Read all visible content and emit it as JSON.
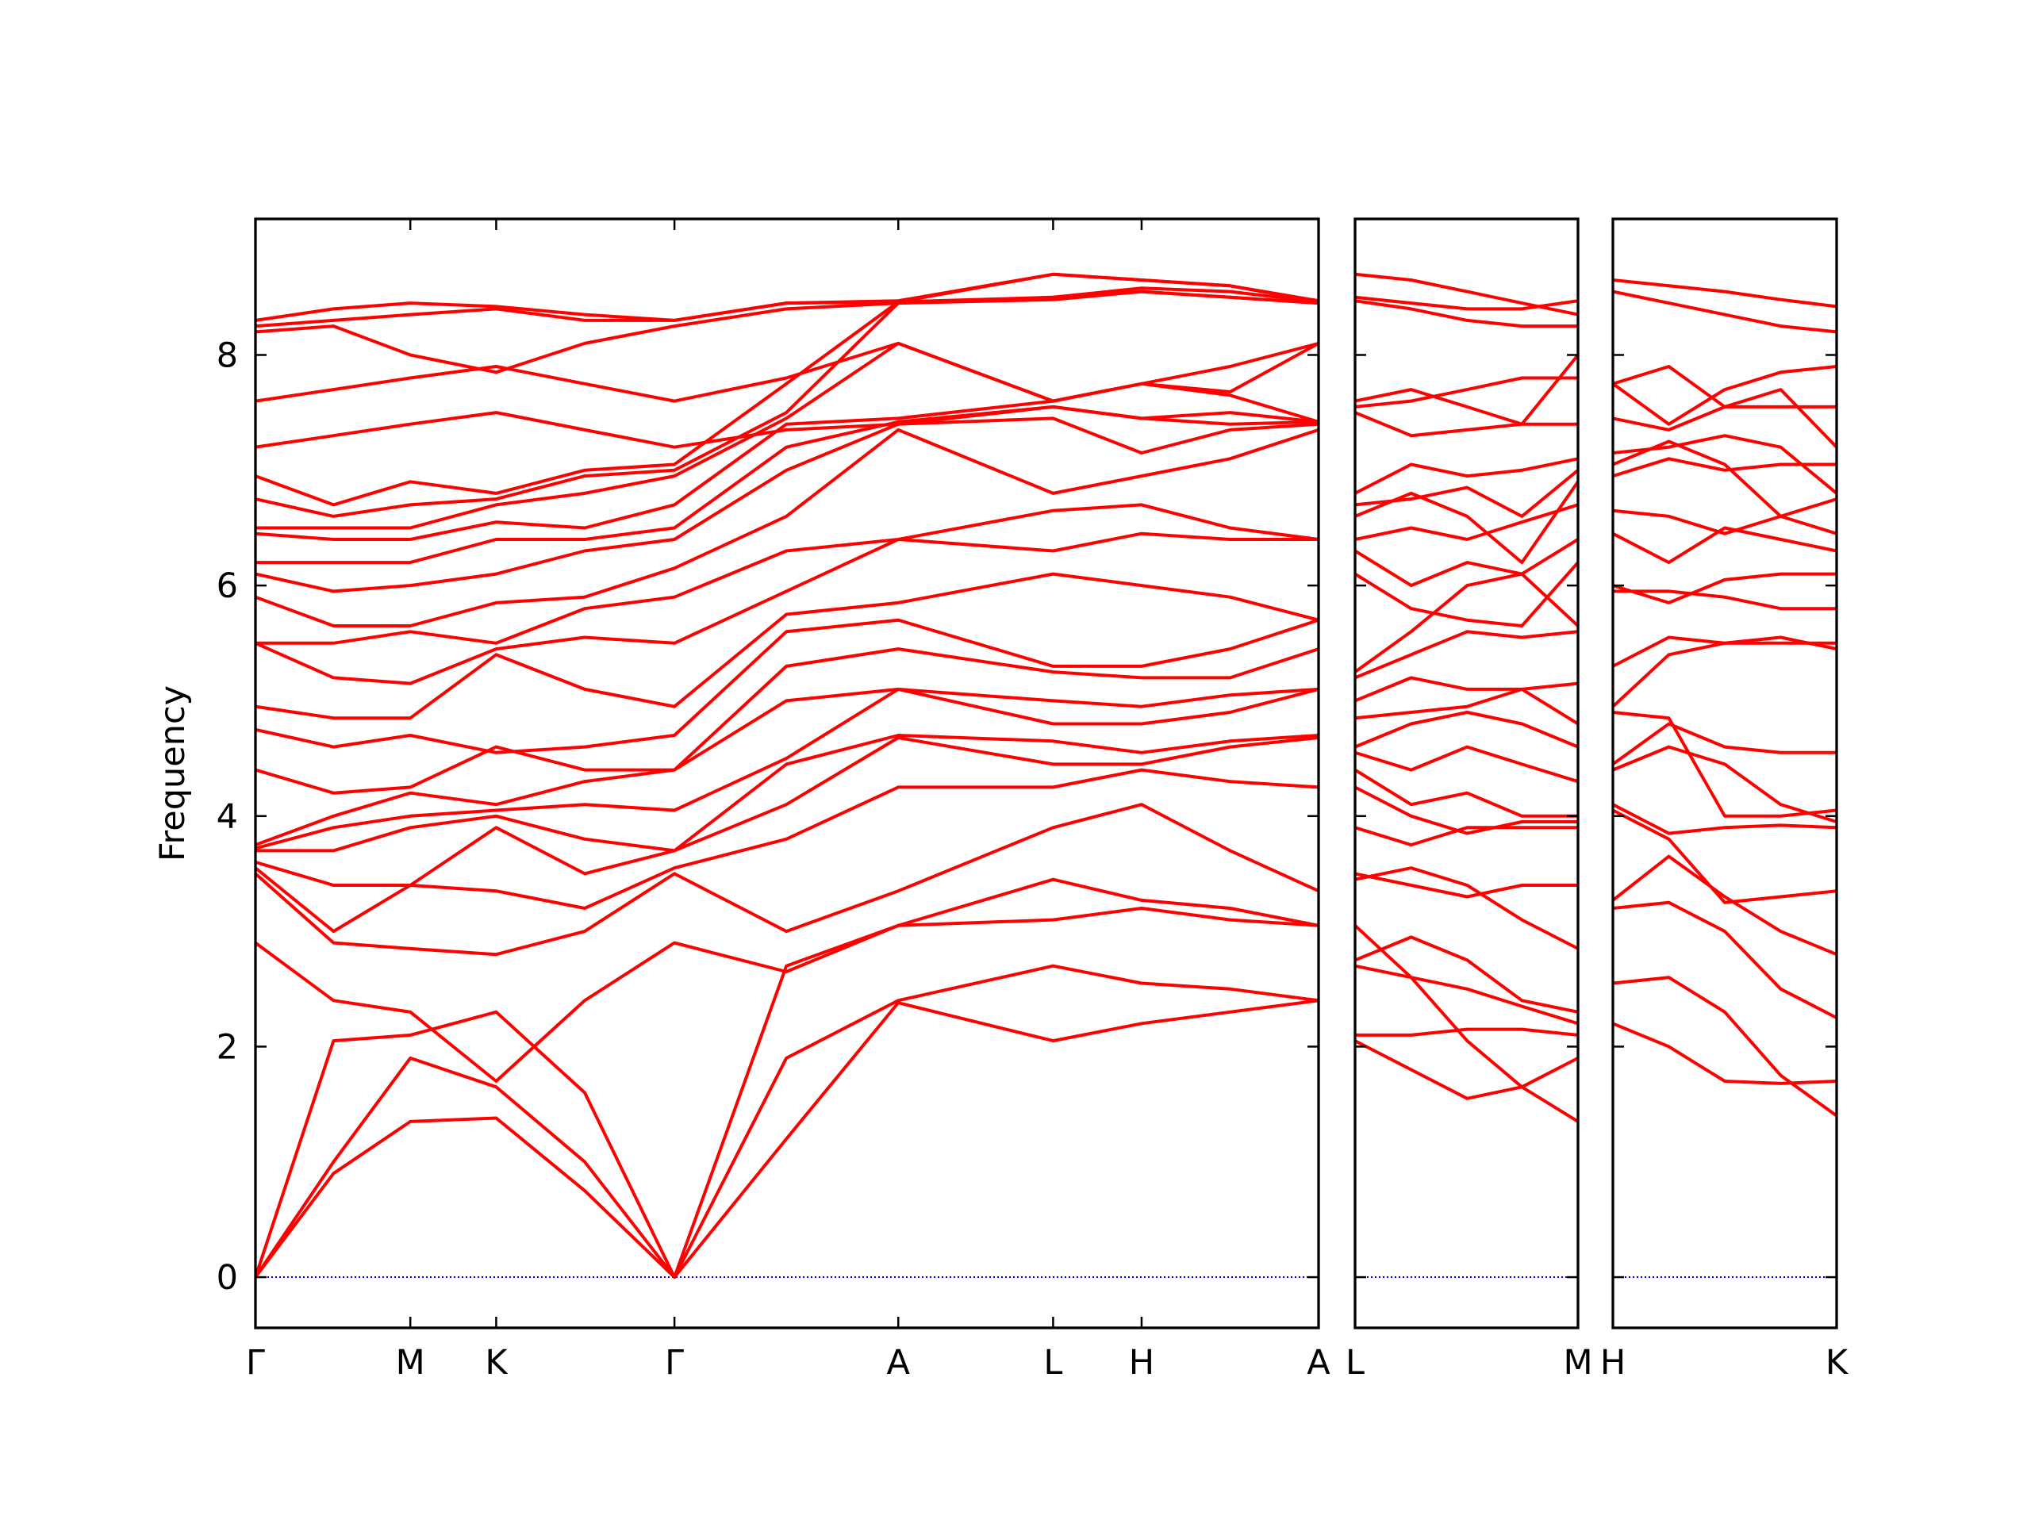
{
  "chart_data": [
    {
      "type": "line",
      "ylabel": "Frequency",
      "line_color": "#ff0000",
      "hline": 0,
      "hline_color": "#0000ff",
      "xlim": [
        0,
        8.17
      ],
      "ylim": [
        -0.44,
        9.18
      ],
      "yticks": [
        0,
        2,
        4,
        6,
        8
      ],
      "ytick_labels": true,
      "xticks": [
        {
          "value": 0,
          "label": "Γ"
        },
        {
          "value": 1.19,
          "label": "M"
        },
        {
          "value": 1.85,
          "label": "K"
        },
        {
          "value": 3.22,
          "label": "Γ"
        },
        {
          "value": 4.94,
          "label": "A"
        },
        {
          "value": 6.13,
          "label": "L"
        },
        {
          "value": 6.81,
          "label": "H"
        },
        {
          "value": 8.17,
          "label": "A"
        }
      ],
      "x": [
        0,
        0.6,
        1.19,
        1.85,
        2.53,
        3.22,
        4.08,
        4.94,
        6.13,
        6.81,
        7.49,
        8.17
      ],
      "series": [
        {
          "values": [
            0,
            0.9,
            1.35,
            1.38,
            0.75,
            0,
            1.2,
            2.38,
            2.05,
            2.2,
            2.3,
            2.4
          ]
        },
        {
          "values": [
            0,
            1.0,
            1.9,
            1.65,
            1.0,
            0,
            1.9,
            2.4,
            2.7,
            2.55,
            2.5,
            2.4
          ]
        },
        {
          "values": [
            0,
            2.05,
            2.1,
            2.3,
            1.6,
            0,
            2.7,
            3.05,
            3.1,
            3.2,
            3.1,
            3.05
          ]
        },
        {
          "values": [
            2.9,
            2.4,
            2.3,
            1.7,
            2.4,
            2.9,
            2.65,
            3.05,
            3.45,
            3.27,
            3.2,
            3.05
          ]
        },
        {
          "values": [
            3.5,
            2.9,
            2.85,
            2.8,
            3.0,
            3.5,
            3.0,
            3.35,
            3.9,
            4.1,
            3.7,
            3.35
          ]
        },
        {
          "values": [
            3.55,
            3.0,
            3.4,
            3.35,
            3.2,
            3.55,
            3.8,
            4.25,
            4.25,
            4.4,
            4.3,
            4.25
          ]
        },
        {
          "values": [
            3.6,
            3.4,
            3.4,
            3.9,
            3.5,
            3.7,
            4.1,
            4.68,
            4.45,
            4.45,
            4.6,
            4.68
          ]
        },
        {
          "values": [
            3.7,
            3.7,
            3.9,
            4.0,
            3.8,
            3.7,
            4.45,
            4.7,
            4.65,
            4.55,
            4.65,
            4.7
          ]
        },
        {
          "values": [
            3.72,
            3.9,
            4.0,
            4.05,
            4.1,
            4.05,
            4.5,
            5.1,
            4.8,
            4.8,
            4.9,
            5.1
          ]
        },
        {
          "values": [
            3.75,
            4.0,
            4.2,
            4.1,
            4.3,
            4.4,
            5.0,
            5.1,
            5.0,
            4.95,
            5.05,
            5.1
          ]
        },
        {
          "values": [
            4.4,
            4.2,
            4.25,
            4.6,
            4.4,
            4.4,
            5.3,
            5.45,
            5.25,
            5.2,
            5.2,
            5.45
          ]
        },
        {
          "values": [
            4.75,
            4.6,
            4.7,
            4.55,
            4.6,
            4.7,
            5.6,
            5.7,
            5.3,
            5.3,
            5.45,
            5.7
          ]
        },
        {
          "values": [
            4.95,
            4.85,
            4.85,
            5.4,
            5.1,
            4.95,
            5.75,
            5.85,
            6.1,
            6.0,
            5.9,
            5.7
          ]
        },
        {
          "values": [
            5.5,
            5.2,
            5.15,
            5.45,
            5.55,
            5.5,
            5.95,
            6.4,
            6.3,
            6.45,
            6.4,
            6.4
          ]
        },
        {
          "values": [
            5.5,
            5.5,
            5.6,
            5.5,
            5.8,
            5.9,
            6.3,
            6.4,
            6.65,
            6.7,
            6.5,
            6.4
          ]
        },
        {
          "values": [
            5.9,
            5.65,
            5.65,
            5.85,
            5.9,
            6.15,
            6.6,
            7.35,
            6.8,
            6.95,
            7.1,
            7.35
          ]
        },
        {
          "values": [
            6.1,
            5.95,
            6.0,
            6.1,
            6.3,
            6.4,
            7.0,
            7.4,
            7.45,
            7.15,
            7.35,
            7.4
          ]
        },
        {
          "values": [
            6.2,
            6.2,
            6.2,
            6.4,
            6.4,
            6.5,
            7.2,
            7.42,
            7.55,
            7.45,
            7.4,
            7.42
          ]
        },
        {
          "values": [
            6.45,
            6.4,
            6.4,
            6.55,
            6.5,
            6.7,
            7.4,
            7.45,
            7.6,
            7.75,
            7.65,
            7.42
          ]
        },
        {
          "values": [
            6.5,
            6.5,
            6.5,
            6.7,
            6.8,
            6.95,
            7.45,
            8.1,
            7.6,
            7.75,
            7.9,
            8.1
          ]
        },
        {
          "values": [
            6.75,
            6.6,
            6.7,
            6.75,
            6.95,
            7.0,
            7.5,
            8.45,
            8.5,
            8.55,
            8.5,
            8.45
          ]
        },
        {
          "values": [
            6.95,
            6.7,
            6.9,
            6.8,
            7.0,
            7.05,
            7.75,
            8.46,
            8.7,
            8.65,
            8.6,
            8.46
          ]
        },
        {
          "values": [
            7.2,
            7.3,
            7.4,
            7.5,
            7.35,
            7.2,
            7.35,
            7.4,
            7.55,
            7.45,
            7.5,
            7.42
          ]
        },
        {
          "values": [
            7.6,
            7.7,
            7.8,
            7.9,
            7.75,
            7.6,
            7.8,
            8.1,
            7.6,
            7.75,
            7.68,
            8.1
          ]
        },
        {
          "values": [
            8.2,
            8.25,
            8.0,
            7.85,
            8.1,
            8.25,
            8.4,
            8.45,
            8.48,
            8.55,
            8.5,
            8.45
          ]
        },
        {
          "values": [
            8.25,
            8.3,
            8.35,
            8.4,
            8.3,
            8.3,
            8.45,
            8.47,
            8.7,
            8.65,
            8.6,
            8.47
          ]
        },
        {
          "values": [
            8.3,
            8.4,
            8.45,
            8.42,
            8.35,
            8.3,
            8.45,
            8.46,
            8.5,
            8.58,
            8.55,
            8.46
          ]
        }
      ]
    },
    {
      "type": "line",
      "line_color": "#ff0000",
      "hline": 0,
      "hline_color": "#0000ff",
      "xlim": [
        0,
        1.71
      ],
      "ylim": [
        -0.44,
        9.18
      ],
      "yticks": [
        0,
        2,
        4,
        6,
        8
      ],
      "ytick_labels": false,
      "xticks": [
        {
          "value": 0,
          "label": "L"
        },
        {
          "value": 1.71,
          "label": "M"
        }
      ],
      "x": [
        0,
        0.43,
        0.86,
        1.28,
        1.71
      ],
      "series": [
        {
          "values": [
            2.05,
            1.8,
            1.55,
            1.65,
            1.35
          ]
        },
        {
          "values": [
            2.1,
            2.1,
            2.15,
            2.15,
            2.1
          ]
        },
        {
          "values": [
            2.7,
            2.6,
            2.5,
            2.35,
            2.2
          ]
        },
        {
          "values": [
            2.75,
            2.95,
            2.75,
            2.4,
            2.3
          ]
        },
        {
          "values": [
            3.05,
            2.6,
            2.05,
            1.65,
            1.9
          ]
        },
        {
          "values": [
            3.45,
            3.55,
            3.4,
            3.1,
            2.85
          ]
        },
        {
          "values": [
            3.5,
            3.4,
            3.3,
            3.4,
            3.4
          ]
        },
        {
          "values": [
            3.9,
            3.75,
            3.9,
            3.9,
            3.9
          ]
        },
        {
          "values": [
            4.25,
            4.0,
            3.85,
            3.95,
            3.95
          ]
        },
        {
          "values": [
            4.4,
            4.1,
            4.2,
            4.0,
            4.0
          ]
        },
        {
          "values": [
            4.55,
            4.4,
            4.6,
            4.45,
            4.3
          ]
        },
        {
          "values": [
            4.6,
            4.8,
            4.9,
            4.8,
            4.6
          ]
        },
        {
          "values": [
            4.85,
            4.9,
            4.95,
            5.1,
            4.8
          ]
        },
        {
          "values": [
            5.0,
            5.2,
            5.1,
            5.1,
            5.15
          ]
        },
        {
          "values": [
            5.2,
            5.4,
            5.6,
            5.55,
            5.6
          ]
        },
        {
          "values": [
            5.25,
            5.6,
            6.0,
            6.1,
            5.65
          ]
        },
        {
          "values": [
            6.1,
            5.8,
            5.7,
            5.65,
            6.2
          ]
        },
        {
          "values": [
            6.3,
            6.0,
            6.2,
            6.1,
            6.4
          ]
        },
        {
          "values": [
            6.4,
            6.5,
            6.4,
            6.55,
            6.7
          ]
        },
        {
          "values": [
            6.6,
            6.8,
            6.6,
            6.2,
            6.9
          ]
        },
        {
          "values": [
            6.7,
            6.75,
            6.85,
            6.6,
            7.0
          ]
        },
        {
          "values": [
            6.8,
            7.05,
            6.95,
            7.0,
            7.1
          ]
        },
        {
          "values": [
            7.5,
            7.3,
            7.35,
            7.4,
            7.4
          ]
        },
        {
          "values": [
            7.55,
            7.6,
            7.7,
            7.8,
            7.8
          ]
        },
        {
          "values": [
            7.6,
            7.7,
            7.55,
            7.4,
            8.0
          ]
        },
        {
          "values": [
            8.47,
            8.4,
            8.3,
            8.25,
            8.25
          ]
        },
        {
          "values": [
            8.5,
            8.45,
            8.4,
            8.4,
            8.47
          ]
        },
        {
          "values": [
            8.7,
            8.65,
            8.55,
            8.45,
            8.35
          ]
        }
      ]
    },
    {
      "type": "line",
      "line_color": "#ff0000",
      "hline": 0,
      "hline_color": "#0000ff",
      "xlim": [
        0,
        1.72
      ],
      "ylim": [
        -0.44,
        9.18
      ],
      "yticks": [
        0,
        2,
        4,
        6,
        8
      ],
      "ytick_labels": false,
      "xticks": [
        {
          "value": 0,
          "label": "H"
        },
        {
          "value": 1.72,
          "label": "K"
        }
      ],
      "x": [
        0,
        0.43,
        0.86,
        1.29,
        1.72
      ],
      "series": [
        {
          "values": [
            2.2,
            2.0,
            1.7,
            1.68,
            1.7
          ]
        },
        {
          "values": [
            2.55,
            2.6,
            2.3,
            1.75,
            1.4
          ]
        },
        {
          "values": [
            3.2,
            3.25,
            3.0,
            2.5,
            2.25
          ]
        },
        {
          "values": [
            3.27,
            3.65,
            3.3,
            3.0,
            2.8
          ]
        },
        {
          "values": [
            4.05,
            3.8,
            3.25,
            3.3,
            3.35
          ]
        },
        {
          "values": [
            4.1,
            3.85,
            3.9,
            3.92,
            3.9
          ]
        },
        {
          "values": [
            4.4,
            4.6,
            4.45,
            4.1,
            3.95
          ]
        },
        {
          "values": [
            4.45,
            4.8,
            4.6,
            4.55,
            4.55
          ]
        },
        {
          "values": [
            4.9,
            4.85,
            4.0,
            4.0,
            4.05
          ]
        },
        {
          "values": [
            4.95,
            5.4,
            5.5,
            5.55,
            5.45
          ]
        },
        {
          "values": [
            5.3,
            5.55,
            5.5,
            5.5,
            5.5
          ]
        },
        {
          "values": [
            5.95,
            5.95,
            5.9,
            5.8,
            5.8
          ]
        },
        {
          "values": [
            6.0,
            5.85,
            6.05,
            6.1,
            6.1
          ]
        },
        {
          "values": [
            6.45,
            6.2,
            6.5,
            6.4,
            6.3
          ]
        },
        {
          "values": [
            6.65,
            6.6,
            6.45,
            6.6,
            6.45
          ]
        },
        {
          "values": [
            6.95,
            7.1,
            7.0,
            7.05,
            7.05
          ]
        },
        {
          "values": [
            7.05,
            7.25,
            7.05,
            6.6,
            6.75
          ]
        },
        {
          "values": [
            7.15,
            7.2,
            7.3,
            7.2,
            6.8
          ]
        },
        {
          "values": [
            7.45,
            7.35,
            7.55,
            7.7,
            7.2
          ]
        },
        {
          "values": [
            7.75,
            7.9,
            7.55,
            7.55,
            7.55
          ]
        },
        {
          "values": [
            7.75,
            7.4,
            7.7,
            7.85,
            7.9
          ]
        },
        {
          "values": [
            8.55,
            8.45,
            8.35,
            8.25,
            8.2
          ]
        },
        {
          "values": [
            8.65,
            8.6,
            8.55,
            8.48,
            8.42
          ]
        }
      ]
    }
  ]
}
